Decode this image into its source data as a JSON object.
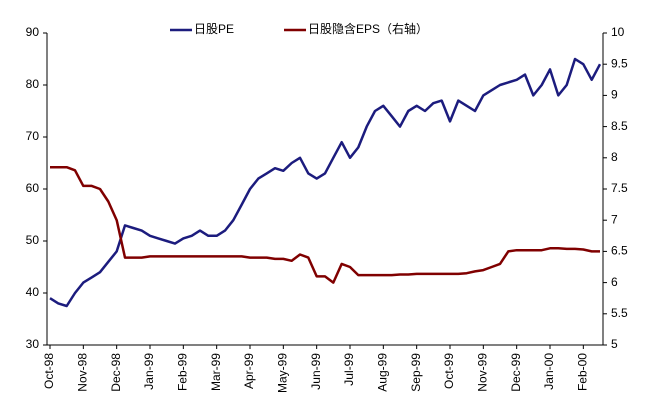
{
  "chart_data": {
    "type": "line",
    "categories": [
      "Oct-98",
      null,
      null,
      null,
      "Nov-98",
      null,
      null,
      null,
      "Dec-98",
      null,
      null,
      null,
      "Jan-99",
      null,
      null,
      null,
      "Feb-99",
      null,
      null,
      null,
      "Mar-99",
      null,
      null,
      null,
      "Apr-99",
      null,
      null,
      null,
      "May-99",
      null,
      null,
      null,
      "Jun-99",
      null,
      null,
      null,
      "Jul-99",
      null,
      null,
      null,
      "Aug-99",
      null,
      null,
      null,
      "Sep-99",
      null,
      null,
      null,
      "Oct-99",
      null,
      null,
      null,
      "Nov-99",
      null,
      null,
      null,
      "Dec-99",
      null,
      null,
      null,
      "Jan-00",
      null,
      null,
      null,
      "Feb-00",
      null,
      null
    ],
    "series": [
      {
        "name": "日股PE",
        "color": "#1c1c7e",
        "values": [
          39,
          38,
          37.5,
          40,
          42,
          43,
          44,
          46,
          48,
          53,
          52.5,
          52,
          51,
          50.5,
          50,
          49.5,
          50.5,
          51,
          52,
          51,
          51,
          52,
          54,
          57,
          60,
          62,
          63,
          64,
          63.5,
          65,
          66,
          63,
          62,
          63,
          66,
          69,
          66,
          68,
          72,
          75,
          76,
          74,
          72,
          75,
          76,
          75,
          76.5,
          77,
          73,
          77,
          76,
          75,
          78,
          79,
          80,
          80.5,
          81,
          82,
          78,
          80,
          83,
          78,
          80,
          85,
          84,
          81,
          84
        ]
      },
      {
        "name": "日股隐含EPS（右轴）",
        "color": "#800000",
        "axis": "y2",
        "values": [
          7.85,
          7.85,
          7.85,
          7.8,
          7.55,
          7.55,
          7.5,
          7.3,
          7.0,
          6.4,
          6.4,
          6.4,
          6.42,
          6.42,
          6.42,
          6.42,
          6.42,
          6.42,
          6.42,
          6.42,
          6.42,
          6.42,
          6.42,
          6.42,
          6.4,
          6.4,
          6.4,
          6.38,
          6.38,
          6.35,
          6.45,
          6.4,
          6.1,
          6.1,
          6.0,
          6.3,
          6.25,
          6.12,
          6.12,
          6.12,
          6.12,
          6.12,
          6.13,
          6.13,
          6.14,
          6.14,
          6.14,
          6.14,
          6.14,
          6.14,
          6.15,
          6.18,
          6.2,
          6.25,
          6.3,
          6.5,
          6.52,
          6.52,
          6.52,
          6.52,
          6.55,
          6.55,
          6.54,
          6.54,
          6.53,
          6.5,
          6.5
        ]
      }
    ],
    "ylim": [
      30,
      90
    ],
    "yticks": [
      30,
      40,
      50,
      60,
      70,
      80,
      90
    ],
    "y2lim": [
      5,
      10
    ],
    "y2ticks": [
      5,
      5.5,
      6,
      6.5,
      7,
      7.5,
      8,
      8.5,
      9,
      9.5,
      10
    ],
    "grid": false
  }
}
